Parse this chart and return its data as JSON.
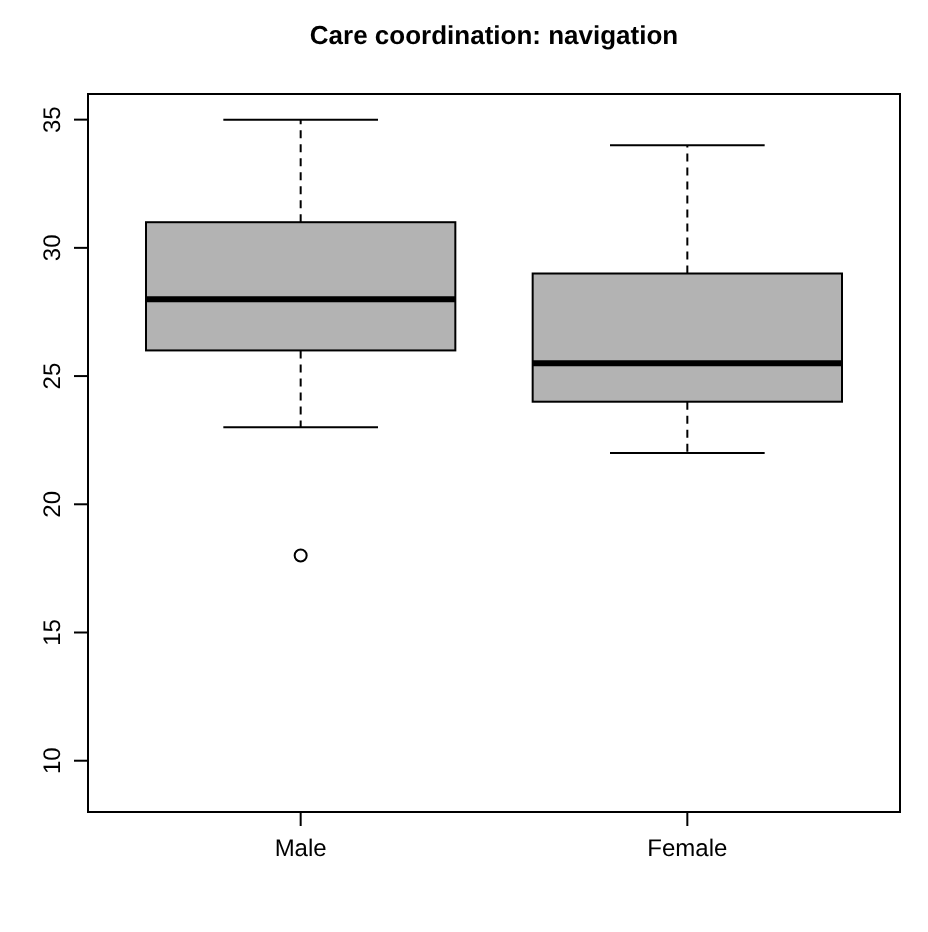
{
  "chart_data": {
    "type": "box",
    "title": "Care coordination: navigation",
    "categories": [
      "Male",
      "Female"
    ],
    "color": "#b3b3b3",
    "boxes": [
      {
        "low": 23,
        "q1": 26,
        "median": 28,
        "q3": 31,
        "high": 35,
        "outliers": [
          18
        ]
      },
      {
        "low": 22,
        "q1": 24,
        "median": 25.5,
        "q3": 29,
        "high": 34
      }
    ],
    "ylim": [
      8,
      36
    ],
    "yticks": [
      10,
      15,
      20,
      25,
      30,
      35
    ],
    "grid": false
  }
}
